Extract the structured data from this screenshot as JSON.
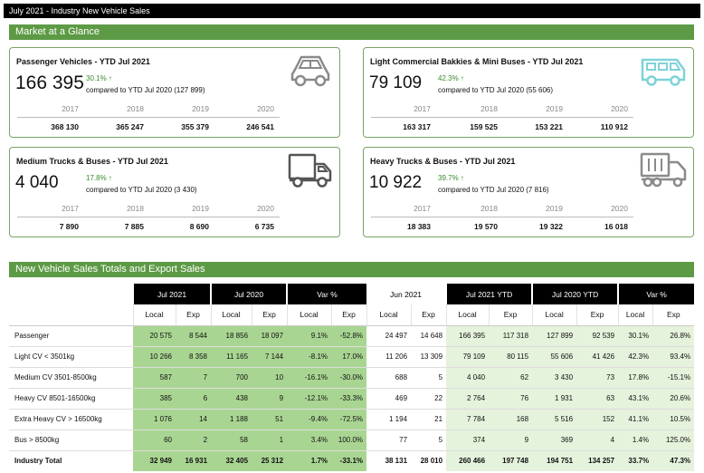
{
  "page": {
    "title": "July 2021 - Industry New Vehicle Sales"
  },
  "glance": {
    "section_title": "Market at a Glance",
    "cards": [
      {
        "title": "Passenger Vehicles - YTD Jul 2021",
        "value": "166 395",
        "pct": "30.1% ↑",
        "compare": "compared to YTD Jul 2020 (127 899)",
        "years": [
          "2017",
          "2018",
          "2019",
          "2020"
        ],
        "values": [
          "368 130",
          "365 247",
          "355 379",
          "246 541"
        ],
        "icon": "car-icon"
      },
      {
        "title": "Light Commercial Bakkies & Mini Buses - YTD Jul 2021",
        "value": "79 109",
        "pct": "42.3% ↑",
        "compare": "compared to YTD Jul 2020 (55 606)",
        "years": [
          "2017",
          "2018",
          "2019",
          "2020"
        ],
        "values": [
          "163 317",
          "159 525",
          "153 221",
          "110 912"
        ],
        "icon": "minibus-icon"
      },
      {
        "title": "Medium Trucks & Buses - YTD Jul 2021",
        "value": "4 040",
        "pct": "17.8% ↑",
        "compare": "compared to YTD Jul 2020 (3 430)",
        "years": [
          "2017",
          "2018",
          "2019",
          "2020"
        ],
        "values": [
          "7 890",
          "7 885",
          "8 690",
          "6 735"
        ],
        "icon": "truck-icon"
      },
      {
        "title": "Heavy Trucks & Buses - YTD Jul 2021",
        "value": "10 922",
        "pct": "39.7% ↑",
        "compare": "compared to YTD Jul 2020 (7 816)",
        "years": [
          "2017",
          "2018",
          "2019",
          "2020"
        ],
        "values": [
          "18 383",
          "19 570",
          "19 322",
          "16 018"
        ],
        "icon": "heavy-truck-icon"
      }
    ]
  },
  "sales": {
    "section_title": "New Vehicle Sales Totals and Export Sales",
    "groups": [
      "Jul 2021",
      "Jul 2020",
      "Var %",
      "Jun 2021",
      "Jul 2021 YTD",
      "Jul 2020 YTD",
      "Var %"
    ],
    "subheaders": [
      "Local",
      "Exp",
      "Local",
      "Exp",
      "Local",
      "Exp",
      "Local",
      "Exp",
      "Local",
      "Exp",
      "Local",
      "Exp",
      "Local",
      "Exp"
    ],
    "rows": [
      {
        "label": "Passenger",
        "cells": [
          "20 575",
          "8 544",
          "18 856",
          "18 097",
          "9.1%",
          "-52.8%",
          "24 497",
          "14 648",
          "166 395",
          "117 318",
          "127 899",
          "92 539",
          "30.1%",
          "26.8%"
        ]
      },
      {
        "label": "Light CV < 3501kg",
        "cells": [
          "10 266",
          "8 358",
          "11 165",
          "7 144",
          "-8.1%",
          "17.0%",
          "11 206",
          "13 309",
          "79 109",
          "80 115",
          "55 606",
          "41 426",
          "42.3%",
          "93.4%"
        ]
      },
      {
        "label": "Medium CV 3501-8500kg",
        "cells": [
          "587",
          "7",
          "700",
          "10",
          "-16.1%",
          "-30.0%",
          "688",
          "5",
          "4 040",
          "62",
          "3 430",
          "73",
          "17.8%",
          "-15.1%"
        ]
      },
      {
        "label": "Heavy CV 8501-16500kg",
        "cells": [
          "385",
          "6",
          "438",
          "9",
          "-12.1%",
          "-33.3%",
          "469",
          "22",
          "2 764",
          "76",
          "1 931",
          "63",
          "43.1%",
          "20.6%"
        ]
      },
      {
        "label": "Extra Heavy CV > 16500kg",
        "cells": [
          "1 076",
          "14",
          "1 188",
          "51",
          "-9.4%",
          "-72.5%",
          "1 194",
          "21",
          "7 784",
          "168",
          "5 516",
          "152",
          "41.1%",
          "10.5%"
        ]
      },
      {
        "label": "Bus > 8500kg",
        "cells": [
          "60",
          "2",
          "58",
          "1",
          "3.4%",
          "100.0%",
          "77",
          "5",
          "374",
          "9",
          "369",
          "4",
          "1.4%",
          "125.0%"
        ]
      },
      {
        "label": "Industry Total",
        "cells": [
          "32 949",
          "16 931",
          "32 405",
          "25 312",
          "1.7%",
          "-33.1%",
          "38 131",
          "28 010",
          "260 466",
          "197 748",
          "194 751",
          "134 257",
          "33.7%",
          "47.3%"
        ]
      }
    ]
  },
  "colors": {
    "section_bar": "#5d9a45",
    "cell_dark_green": "#a9d592",
    "cell_light_green": "#e5f2dc",
    "pct_green": "#3a8a2e"
  }
}
